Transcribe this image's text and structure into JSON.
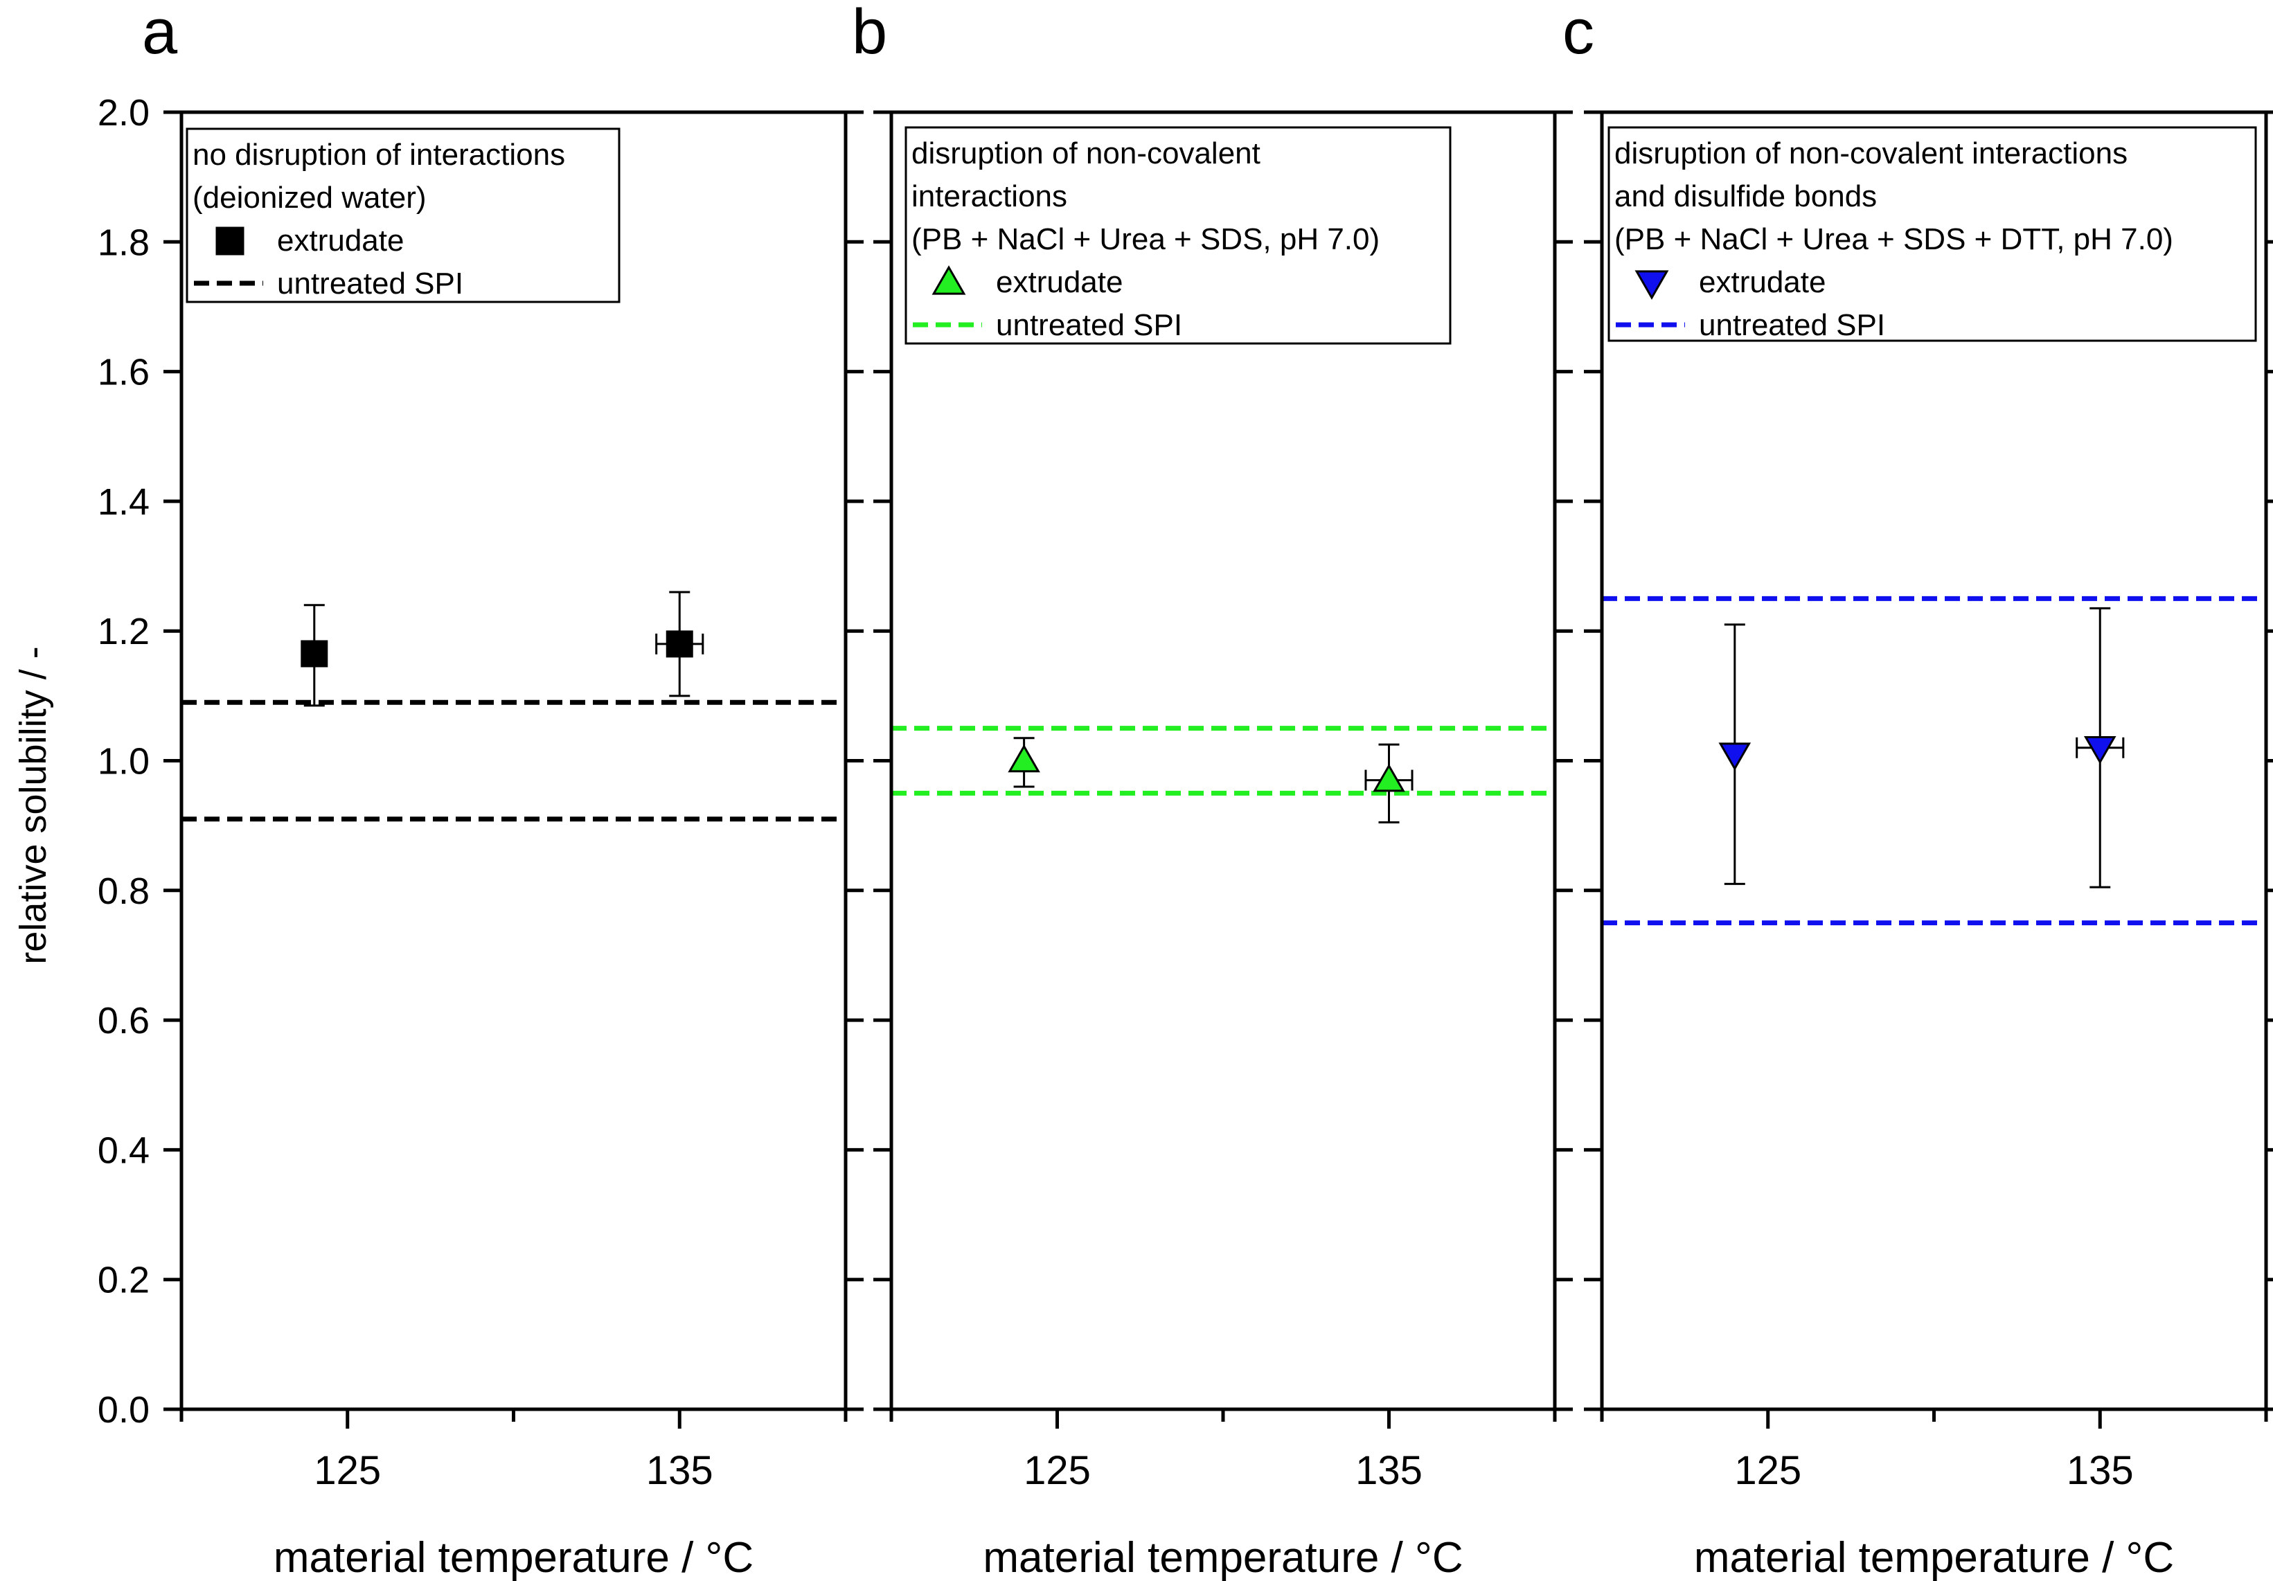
{
  "figure": {
    "y_axis_label": "relative solubility / -",
    "y_ticks": [
      "0.0",
      "0.2",
      "0.4",
      "0.6",
      "0.8",
      "1.0",
      "1.2",
      "1.4",
      "1.6",
      "1.8",
      "2.0"
    ],
    "x_ticks": [
      "125",
      "135"
    ]
  },
  "chart_data": [
    {
      "panel_letter": "a",
      "type": "scatter",
      "xlabel": "material temperature / °C",
      "ylabel": "relative solubility / -",
      "ylim": [
        0,
        2.0
      ],
      "xlim": [
        120,
        140
      ],
      "x_ticks": [
        125,
        135
      ],
      "legend": {
        "placement": "top-left",
        "title_lines": [
          "no disruption of interactions",
          "(deionized water)"
        ],
        "point_label": "extrudate",
        "line_label": "untreated SPI"
      },
      "marker": "square",
      "color": "#000000",
      "points": [
        {
          "x": 124,
          "y": 1.165,
          "y_err_low": 0.08,
          "y_err_high": 0.075,
          "x_err": 0
        },
        {
          "x": 135,
          "y": 1.18,
          "y_err_low": 0.08,
          "y_err_high": 0.08,
          "x_err": 0.7
        }
      ],
      "reference_lines": [
        1.09,
        0.91
      ]
    },
    {
      "panel_letter": "b",
      "type": "scatter",
      "xlabel": "material temperature / °C",
      "ylabel": "relative solubility / -",
      "ylim": [
        0,
        2.0
      ],
      "xlim": [
        120,
        140
      ],
      "x_ticks": [
        125,
        135
      ],
      "legend": {
        "placement": "top-left",
        "title_lines": [
          "disruption of non-covalent",
          "interactions",
          "(PB + NaCl + Urea + SDS, pH 7.0)"
        ],
        "point_label": "extrudate",
        "line_label": "untreated SPI"
      },
      "marker": "triangle-up",
      "color": "#22ee22",
      "points": [
        {
          "x": 124,
          "y": 1.0,
          "y_err_low": 0.04,
          "y_err_high": 0.035,
          "x_err": 0
        },
        {
          "x": 135,
          "y": 0.97,
          "y_err_low": 0.065,
          "y_err_high": 0.055,
          "x_err": 0.7
        }
      ],
      "reference_lines": [
        1.05,
        0.95
      ]
    },
    {
      "panel_letter": "c",
      "type": "scatter",
      "xlabel": "material temperature / °C",
      "ylabel": "relative solubility / -",
      "ylim": [
        0,
        2.0
      ],
      "xlim": [
        120,
        140
      ],
      "x_ticks": [
        125,
        135
      ],
      "legend": {
        "placement": "top-left",
        "title_lines": [
          "disruption of non-covalent interactions",
          "and disulfide bonds",
          "(PB + NaCl + Urea + SDS + DTT, pH 7.0)"
        ],
        "point_label": "extrudate",
        "line_label": "untreated SPI"
      },
      "marker": "triangle-down",
      "color": "#1010ee",
      "points": [
        {
          "x": 124,
          "y": 1.01,
          "y_err_low": 0.2,
          "y_err_high": 0.2,
          "x_err": 0
        },
        {
          "x": 135,
          "y": 1.02,
          "y_err_low": 0.215,
          "y_err_high": 0.215,
          "x_err": 0.7
        }
      ],
      "reference_lines": [
        1.25,
        0.75
      ]
    }
  ]
}
